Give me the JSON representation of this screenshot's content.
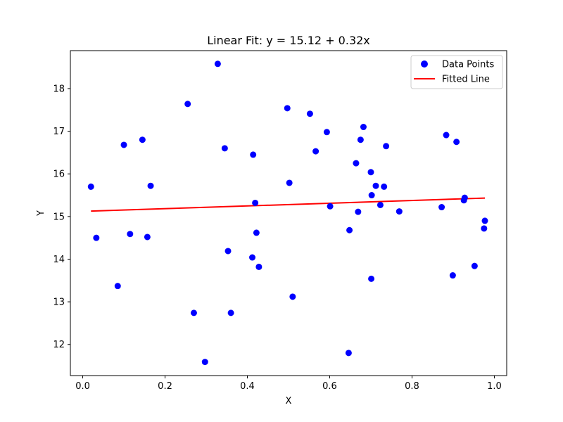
{
  "chart_data": {
    "type": "scatter",
    "title": "Linear Fit: y = 15.12 + 0.32x",
    "xlabel": "X",
    "ylabel": "Y",
    "xlim": [
      -0.03,
      1.03
    ],
    "ylim": [
      11.27,
      18.89
    ],
    "xticks": [
      0.0,
      0.2,
      0.4,
      0.6,
      0.8,
      1.0
    ],
    "xtick_labels": [
      "0.0",
      "0.2",
      "0.4",
      "0.6",
      "0.8",
      "1.0"
    ],
    "yticks": [
      12,
      13,
      14,
      15,
      16,
      17,
      18
    ],
    "ytick_labels": [
      "12",
      "13",
      "14",
      "15",
      "16",
      "17",
      "18"
    ],
    "grid": false,
    "legend_position": "top-right",
    "series": [
      {
        "name": "Data Points",
        "kind": "scatter",
        "color": "#0000ff",
        "points": [
          [
            0.02,
            15.7
          ],
          [
            0.033,
            14.5
          ],
          [
            0.085,
            13.37
          ],
          [
            0.1,
            16.68
          ],
          [
            0.115,
            14.59
          ],
          [
            0.145,
            16.8
          ],
          [
            0.157,
            14.52
          ],
          [
            0.165,
            15.72
          ],
          [
            0.255,
            17.64
          ],
          [
            0.27,
            12.74
          ],
          [
            0.297,
            11.59
          ],
          [
            0.328,
            18.58
          ],
          [
            0.345,
            16.6
          ],
          [
            0.353,
            14.19
          ],
          [
            0.36,
            12.74
          ],
          [
            0.412,
            14.04
          ],
          [
            0.414,
            16.45
          ],
          [
            0.419,
            15.32
          ],
          [
            0.422,
            14.62
          ],
          [
            0.428,
            13.82
          ],
          [
            0.497,
            17.54
          ],
          [
            0.502,
            15.79
          ],
          [
            0.51,
            13.12
          ],
          [
            0.552,
            17.41
          ],
          [
            0.566,
            16.53
          ],
          [
            0.593,
            16.98
          ],
          [
            0.601,
            15.24
          ],
          [
            0.646,
            11.8
          ],
          [
            0.648,
            14.68
          ],
          [
            0.664,
            16.25
          ],
          [
            0.669,
            15.11
          ],
          [
            0.675,
            16.8
          ],
          [
            0.682,
            17.1
          ],
          [
            0.7,
            16.04
          ],
          [
            0.701,
            13.54
          ],
          [
            0.702,
            15.5
          ],
          [
            0.712,
            15.72
          ],
          [
            0.723,
            15.27
          ],
          [
            0.732,
            15.7
          ],
          [
            0.737,
            16.65
          ],
          [
            0.769,
            15.12
          ],
          [
            0.872,
            15.22
          ],
          [
            0.883,
            16.91
          ],
          [
            0.899,
            13.62
          ],
          [
            0.908,
            16.75
          ],
          [
            0.926,
            15.38
          ],
          [
            0.928,
            15.44
          ],
          [
            0.952,
            13.84
          ],
          [
            0.975,
            14.72
          ],
          [
            0.977,
            14.9
          ]
        ]
      },
      {
        "name": "Fitted Line",
        "kind": "line",
        "color": "#ff0000",
        "intercept": 15.12,
        "slope": 0.32,
        "x_range": [
          0.02,
          0.977
        ]
      }
    ]
  }
}
